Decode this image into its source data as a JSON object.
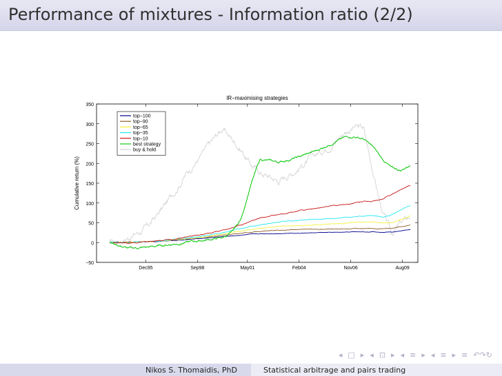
{
  "frame": {
    "title": "Performance of mixtures - Information ratio (2/2)"
  },
  "footer": {
    "author": "Nikos S. Thomaidis, PhD",
    "talk_title": "Statistical arbitrage and pairs trading"
  },
  "navigation": {
    "symbols": [
      "◂",
      "□",
      "▸",
      "◂",
      "⊡",
      "▸",
      "◂",
      "≡",
      "▸",
      "◂",
      "≡",
      "▸",
      "≡",
      "↶↷↻"
    ]
  },
  "colors": {
    "top-100": "#00008b",
    "top-90": "#8b5a2b",
    "top-65": "#f5f03c",
    "top-35": "#22e8f0",
    "top-10": "#c81414",
    "best strategy": "#14c814",
    "buy & hold": "#d2d2d2"
  },
  "chart_data": {
    "type": "line",
    "title": "IR−maximising strategies",
    "xlabel": "",
    "ylabel": "Cumulative return (%)",
    "ylim": [
      -50,
      350
    ],
    "yticks": [
      -50,
      0,
      50,
      100,
      150,
      200,
      250,
      300,
      350
    ],
    "ytick_labels": [
      "−50",
      "0",
      "50",
      "100",
      "150",
      "200",
      "250",
      "300",
      "350"
    ],
    "xlim": [
      1993.3,
      2010.4
    ],
    "xticks": [
      1995.92,
      1998.67,
      2001.33,
      2004.08,
      2006.83,
      2009.58
    ],
    "xtick_labels": [
      "Dec95",
      "Sep98",
      "May01",
      "Feb04",
      "Nov06",
      "Aug09"
    ],
    "legend_location": "top-left",
    "x": [
      1994.0,
      1995.0,
      1996.0,
      1997.0,
      1998.0,
      1999.0,
      2000.0,
      2000.5,
      2001.0,
      2001.5,
      2002.0,
      2003.0,
      2004.0,
      2005.0,
      2006.0,
      2006.5,
      2007.0,
      2007.5,
      2008.0,
      2008.5,
      2009.0,
      2009.5,
      2010.0
    ],
    "series": [
      {
        "name": "top−100",
        "values": [
          0,
          1,
          2,
          4,
          7,
          11,
          15,
          17,
          19,
          21,
          22,
          23,
          24,
          25,
          26,
          26,
          27,
          27,
          27,
          26,
          27,
          30,
          33
        ]
      },
      {
        "name": "top−90",
        "values": [
          0,
          1,
          3,
          5,
          9,
          13,
          18,
          21,
          24,
          26,
          28,
          31,
          33,
          34,
          35,
          35,
          36,
          36,
          36,
          35,
          36,
          40,
          45
        ]
      },
      {
        "name": "top−65",
        "values": [
          0,
          0,
          2,
          5,
          9,
          14,
          21,
          25,
          29,
          33,
          36,
          41,
          43,
          45,
          48,
          49,
          51,
          52,
          52,
          49,
          50,
          58,
          68
        ]
      },
      {
        "name": "top−35",
        "values": [
          0,
          0,
          2,
          6,
          11,
          17,
          25,
          30,
          35,
          40,
          45,
          52,
          56,
          59,
          62,
          64,
          66,
          67,
          68,
          65,
          70,
          82,
          94
        ]
      },
      {
        "name": "top−10",
        "values": [
          0,
          -1,
          1,
          6,
          13,
          21,
          31,
          38,
          45,
          55,
          62,
          72,
          80,
          87,
          93,
          96,
          100,
          104,
          106,
          110,
          120,
          135,
          143
        ]
      },
      {
        "name": "best strategy",
        "values": [
          0,
          -15,
          -12,
          -6,
          0,
          6,
          12,
          25,
          60,
          145,
          210,
          203,
          215,
          232,
          255,
          265,
          268,
          262,
          242,
          212,
          188,
          182,
          196
        ]
      },
      {
        "name": "buy & hold",
        "values": [
          0,
          14,
          38,
          98,
          170,
          228,
          288,
          262,
          236,
          198,
          178,
          156,
          188,
          222,
          258,
          280,
          292,
          288,
          182,
          78,
          22,
          48,
          66
        ]
      }
    ]
  }
}
